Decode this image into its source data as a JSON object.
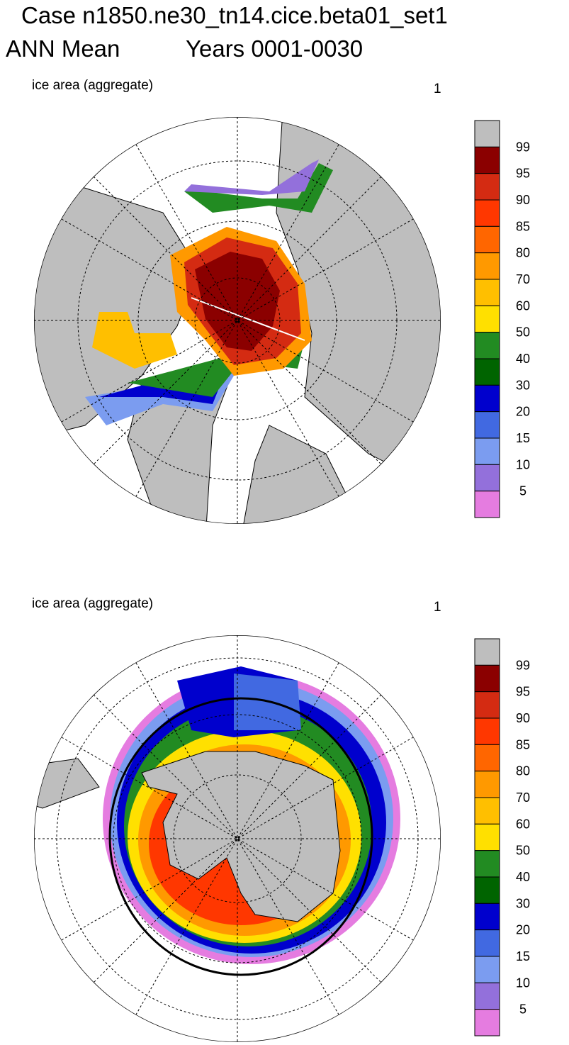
{
  "header": {
    "title": "Case n1850.ne30_tn14.cice.beta01_set1",
    "season": "ANN Mean",
    "years": "Years 0001-0030"
  },
  "panels": [
    {
      "label": "ice area  (aggregate)",
      "units": "1"
    },
    {
      "label": "ice area  (aggregate)",
      "units": "1"
    }
  ],
  "colorbar": {
    "labels": [
      "99",
      "95",
      "90",
      "85",
      "80",
      "70",
      "60",
      "50",
      "40",
      "30",
      "20",
      "15",
      "10",
      "5"
    ],
    "colors": [
      "#bebebe",
      "#8b0000",
      "#d42b12",
      "#ff3700",
      "#ff6600",
      "#ff9900",
      "#ffbf00",
      "#ffe000",
      "#228b22",
      "#006400",
      "#0000cd",
      "#4169e1",
      "#7b9cf0",
      "#9370db",
      "#e57ce0"
    ]
  }
}
